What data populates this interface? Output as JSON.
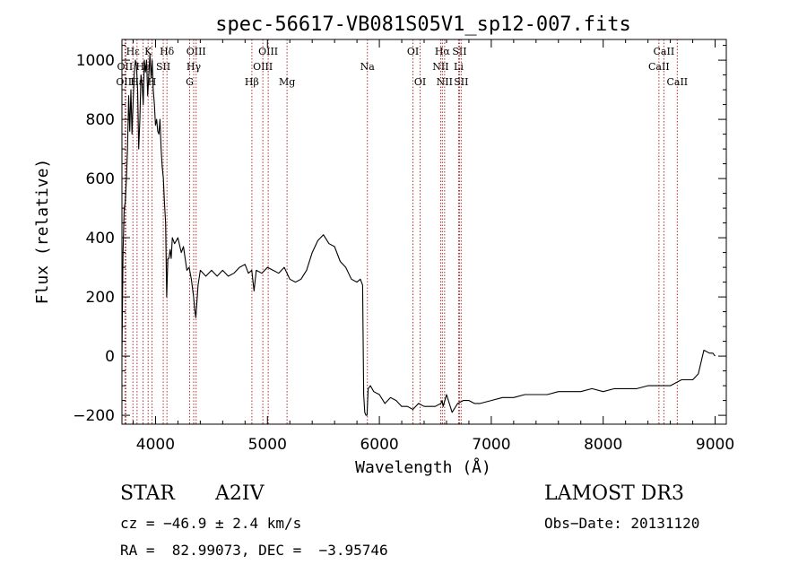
{
  "chart_data": {
    "type": "line",
    "title": "spec-56617-VB081S05V1_sp12-007.fits",
    "xlabel": "Wavelength (Å)",
    "ylabel": "Flux (relative)",
    "xlim": [
      3700,
      9100
    ],
    "ylim": [
      -230,
      1070
    ],
    "x_ticks": [
      4000,
      5000,
      6000,
      7000,
      8000,
      9000
    ],
    "y_ticks": [
      -200,
      0,
      200,
      400,
      600,
      800,
      1000
    ],
    "grid": false,
    "line_color": "#000000",
    "marker_color": "#b03030",
    "series": [
      {
        "x": [
          3700,
          3710,
          3720,
          3730,
          3740,
          3750,
          3760,
          3770,
          3780,
          3790,
          3800,
          3810,
          3820,
          3830,
          3840,
          3850,
          3860,
          3870,
          3880,
          3890,
          3900,
          3910,
          3920,
          3930,
          3940,
          3950,
          3960,
          3970,
          3980,
          3990,
          4000,
          4010,
          4020,
          4030,
          4040,
          4050,
          4060,
          4070,
          4080,
          4090,
          4100,
          4110,
          4120,
          4130,
          4140,
          4150,
          4170,
          4200,
          4230,
          4250,
          4280,
          4300,
          4320,
          4340,
          4350,
          4360,
          4380,
          4400,
          4450,
          4500,
          4550,
          4600,
          4650,
          4700,
          4750,
          4800,
          4830,
          4860,
          4880,
          4900,
          4950,
          5000,
          5050,
          5100,
          5150,
          5200,
          5250,
          5300,
          5350,
          5400,
          5450,
          5500,
          5550,
          5600,
          5650,
          5700,
          5750,
          5800,
          5830,
          5850,
          5860,
          5870,
          5880,
          5890,
          5900,
          5920,
          5950,
          6000,
          6050,
          6100,
          6150,
          6200,
          6250,
          6300,
          6350,
          6400,
          6450,
          6500,
          6550,
          6560,
          6570,
          6600,
          6650,
          6700,
          6750,
          6800,
          6850,
          6900,
          7000,
          7100,
          7200,
          7300,
          7400,
          7500,
          7600,
          7700,
          7800,
          7900,
          8000,
          8100,
          8200,
          8300,
          8400,
          8500,
          8600,
          8700,
          8800,
          8850,
          8900,
          8950,
          8980,
          9000
        ],
        "y": [
          0,
          350,
          500,
          520,
          600,
          700,
          880,
          760,
          900,
          750,
          860,
          950,
          1000,
          980,
          900,
          700,
          800,
          950,
          920,
          850,
          1000,
          960,
          1000,
          880,
          950,
          1020,
          940,
          1000,
          900,
          850,
          780,
          800,
          760,
          750,
          800,
          700,
          640,
          600,
          520,
          450,
          200,
          330,
          330,
          360,
          330,
          400,
          380,
          400,
          350,
          370,
          290,
          300,
          260,
          200,
          160,
          130,
          240,
          290,
          270,
          290,
          270,
          290,
          270,
          280,
          300,
          310,
          280,
          290,
          220,
          290,
          280,
          300,
          290,
          280,
          300,
          260,
          250,
          260,
          290,
          350,
          390,
          410,
          380,
          370,
          320,
          300,
          260,
          250,
          260,
          240,
          -130,
          -190,
          -200,
          -200,
          -110,
          -100,
          -120,
          -130,
          -160,
          -140,
          -150,
          -170,
          -170,
          -180,
          -160,
          -170,
          -170,
          -170,
          -160,
          -150,
          -170,
          -130,
          -190,
          -160,
          -150,
          -150,
          -160,
          -160,
          -150,
          -140,
          -140,
          -130,
          -130,
          -130,
          -120,
          -120,
          -120,
          -110,
          -120,
          -110,
          -110,
          -110,
          -100,
          -100,
          -100,
          -80,
          -80,
          -60,
          20,
          10,
          10,
          0
        ]
      }
    ],
    "lines": [
      {
        "label": "Hε",
        "x": 3798,
        "row": 0
      },
      {
        "label": "OII",
        "x": 3727,
        "row": 1
      },
      {
        "label": "OIII",
        "x": 3735,
        "row": 2
      },
      {
        "label": "Hε",
        "x": 3835,
        "row": 2
      },
      {
        "label": "He",
        "x": 3889,
        "row": 1
      },
      {
        "label": "K",
        "x": 3934,
        "row": 0
      },
      {
        "label": "H",
        "x": 3969,
        "row": 2
      },
      {
        "label": "Hδ",
        "x": 4102,
        "row": 0
      },
      {
        "label": "SII",
        "x": 4069,
        "row": 1
      },
      {
        "label": "OIII",
        "x": 4363,
        "row": 0
      },
      {
        "label": "Hγ",
        "x": 4341,
        "row": 1
      },
      {
        "label": "G",
        "x": 4305,
        "row": 2
      },
      {
        "label": "Hβ",
        "x": 4861,
        "row": 2
      },
      {
        "label": "OIII",
        "x": 5007,
        "row": 0
      },
      {
        "label": "OIII",
        "x": 4959,
        "row": 1
      },
      {
        "label": "Mg",
        "x": 5175,
        "row": 2
      },
      {
        "label": "Na",
        "x": 5893,
        "row": 1
      },
      {
        "label": "OI",
        "x": 6300,
        "row": 0
      },
      {
        "label": "OI",
        "x": 6364,
        "row": 2
      },
      {
        "label": "Hα",
        "x": 6563,
        "row": 0
      },
      {
        "label": "NII",
        "x": 6548,
        "row": 1
      },
      {
        "label": "NII",
        "x": 6583,
        "row": 2
      },
      {
        "label": "SII",
        "x": 6716,
        "row": 0
      },
      {
        "label": "Li",
        "x": 6708,
        "row": 1
      },
      {
        "label": "SII",
        "x": 6731,
        "row": 2
      },
      {
        "label": "CaII",
        "x": 8542,
        "row": 0
      },
      {
        "label": "CaII",
        "x": 8498,
        "row": 1
      },
      {
        "label": "CaII",
        "x": 8662,
        "row": 2
      }
    ]
  },
  "info": {
    "class": "STAR",
    "subclass": "A2IV",
    "survey": "LAMOST DR3",
    "cz": "cz = −46.9 ± 2.4 km/s",
    "obs_date": "Obs−Date: 20131120",
    "radec": "RA =  82.99073, DEC =  −3.95746"
  }
}
